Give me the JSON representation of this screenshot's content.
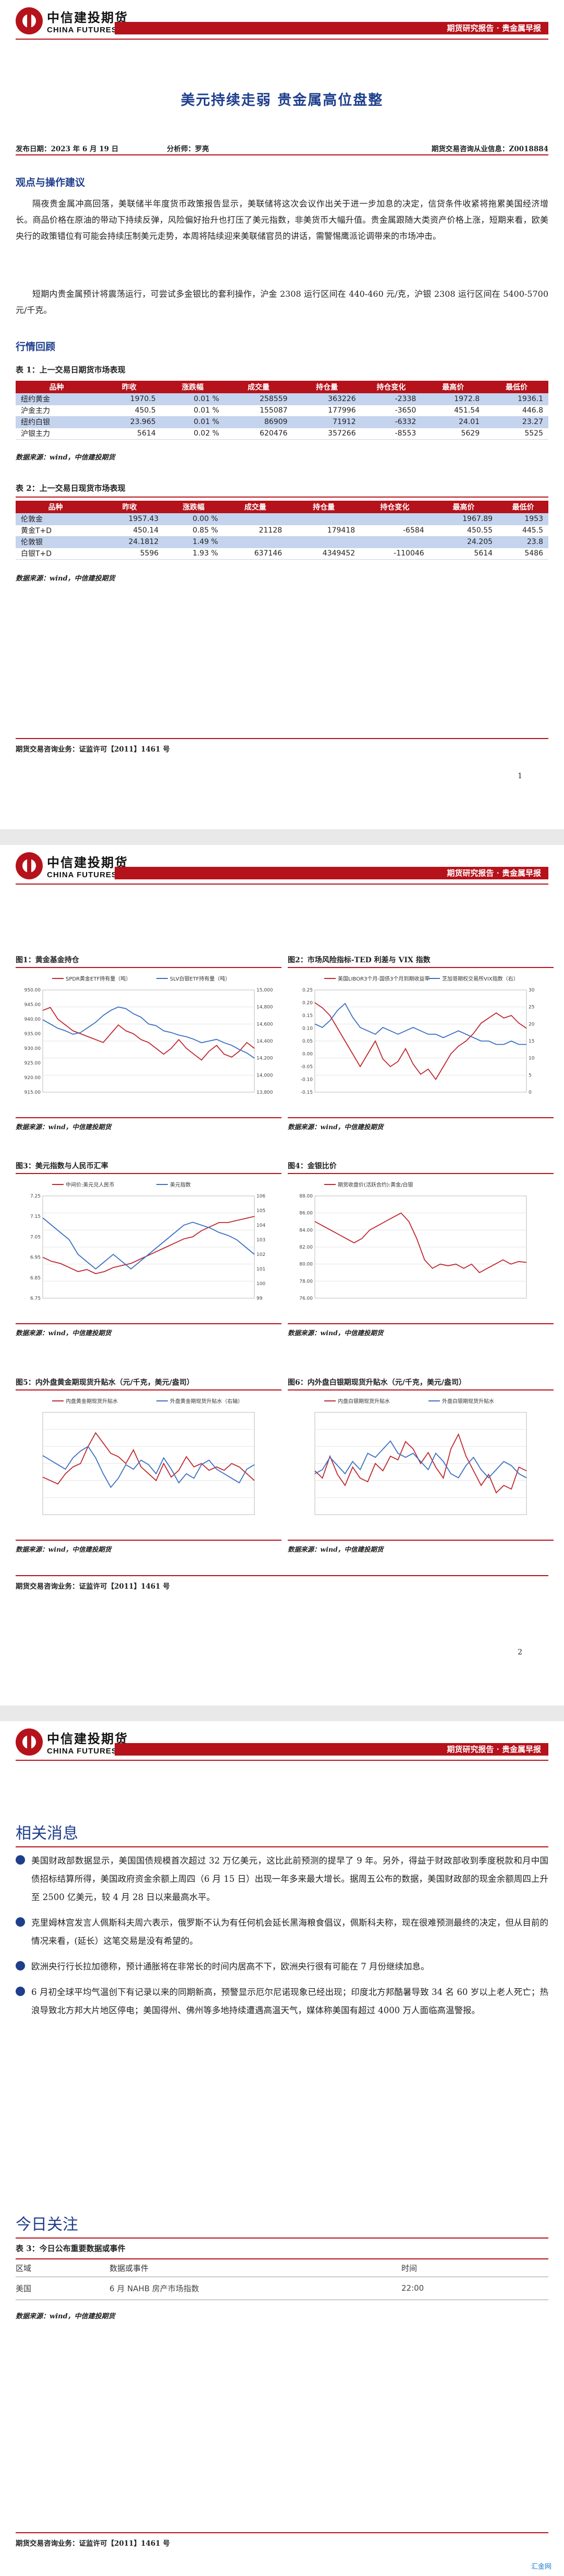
{
  "header": {
    "logo_cn": "中信建投期货",
    "logo_en": "CHINA FUTURES",
    "report_type": "期货研究报告 · 贵金属早报"
  },
  "title": "美元持续走弱  贵金属高位盘整",
  "meta": {
    "date": "发布日期：2023 年 6 月 19 日",
    "analyst": "分析师：罗亮",
    "license": "期货交易咨询从业信息：Z0018884"
  },
  "section_view": "观点与操作建议",
  "para1": "隔夜贵金属冲高回落，美联储半年度货币政策报告显示，美联储将这次会议作出关于进一步加息的决定，信贷条件收紧将拖累美国经济增长。商品价格在原油的带动下持续反弹，风险偏好抬升也打压了美元指数，非美货币大幅升值。贵金属跟随大类资产价格上涨，短期来看，欧美央行的政策错位有可能会持续压制美元走势，本周将陆续迎来美联储官员的讲话，需警惕鹰派论调带来的市场冲击。",
  "para2": "短期内贵金属预计将震荡运行，可尝试多金银比的套利操作，沪金 2308 运行区间在 440-460 元/克，沪银 2308 运行区间在 5400-5700 元/千克。",
  "section_market": "行情回顾",
  "table1": {
    "caption": "表 1：上一交易日期货市场表现",
    "headers": [
      "品种",
      "昨收",
      "涨跌幅",
      "成交量",
      "持仓量",
      "持仓变化",
      "最高价",
      "最低价"
    ],
    "rows": [
      [
        "纽约黄金",
        "1970.5",
        "0.01 %",
        "258559",
        "363226",
        "-2338",
        "1972.8",
        "1936.1"
      ],
      [
        "沪金主力",
        "450.5",
        "0.01 %",
        "155087",
        "177996",
        "-3650",
        "451.54",
        "446.8"
      ],
      [
        "纽约白银",
        "23.965",
        "0.01 %",
        "86909",
        "71912",
        "-6332",
        "24.01",
        "23.27"
      ],
      [
        "沪银主力",
        "5614",
        "0.02 %",
        "620476",
        "357266",
        "-8553",
        "5629",
        "5525"
      ]
    ],
    "source": "数据来源：wind，中信建投期货"
  },
  "table2": {
    "caption": "表 2：上一交易日现货市场表现",
    "headers": [
      "品种",
      "昨收",
      "涨跌幅",
      "成交量",
      "持仓量",
      "持仓变化",
      "最高价",
      "最低价"
    ],
    "rows": [
      [
        "伦敦金",
        "1957.43",
        "0.00 %",
        "",
        "",
        "",
        "1967.89",
        "1953"
      ],
      [
        "黄金T+D",
        "450.14",
        "0.85 %",
        "21128",
        "179418",
        "-6584",
        "450.55",
        "445.5"
      ],
      [
        "伦敦银",
        "24.1812",
        "1.49 %",
        "",
        "",
        "",
        "24.205",
        "23.8"
      ],
      [
        "白银T+D",
        "5596",
        "1.93 %",
        "637146",
        "4349452",
        "-110046",
        "5614",
        "5486"
      ]
    ],
    "source": "数据来源：wind，中信建投期货"
  },
  "footer": "期货交易咨询业务：证监许可【2011】1461 号",
  "page_numbers": [
    "1",
    "2"
  ],
  "charts": {
    "c1": {
      "title": "图1：黄金基金持仓",
      "legend": [
        "SPDR黄金ETF持有量（吨）",
        "SLV白银ETF持有量（吨）"
      ]
    },
    "c2": {
      "title": "图2：市场风险指标-TED 利差与 VIX 指数",
      "legend": [
        "美国LIBOR3个月-国债3个月到期收益率",
        "芝加哥期权交易所VIX指数（右）"
      ]
    },
    "c3": {
      "title": "图3：美元指数与人民币汇率",
      "legend": [
        "中间价:美元兑人民币",
        "美元指数"
      ]
    },
    "c4": {
      "title": "图4：金银比价",
      "legend": [
        "期货收盘价(活跃合约):黄金/白银"
      ]
    },
    "c5": {
      "title": "图5：内外盘黄金期现货升贴水（元/千克，美元/盎司）",
      "legend": [
        "内盘黄金期现货升贴水",
        "外盘黄金期现货升贴水（右轴）"
      ]
    },
    "c6": {
      "title": "图6：内外盘白银期现货升贴水（元/千克，美元/盎司）",
      "legend": [
        "内盘白银期现货升贴水",
        "外盘白银期现货升贴水"
      ]
    },
    "source": "数据来源：wind，中信建投期货"
  },
  "chart_data": [
    {
      "type": "line",
      "title": "图1：黄金基金持仓",
      "series": [
        {
          "name": "SPDR黄金ETF持有量（吨）",
          "values": [
            943,
            944,
            940,
            938,
            936,
            935,
            934,
            933,
            932,
            935,
            938,
            936,
            935,
            933,
            932,
            930,
            928,
            930,
            933,
            930,
            928,
            926,
            929,
            931,
            928,
            927,
            929,
            932,
            930
          ]
        },
        {
          "name": "SLV白银ETF持有量（吨）",
          "values": [
            14650,
            14600,
            14550,
            14520,
            14480,
            14500,
            14560,
            14620,
            14700,
            14760,
            14800,
            14780,
            14720,
            14680,
            14600,
            14580,
            14520,
            14500,
            14470,
            14450,
            14420,
            14380,
            14400,
            14420,
            14380,
            14350,
            14300,
            14260,
            14200
          ]
        }
      ],
      "ylim_left": [
        915,
        950
      ],
      "ylim_right": [
        13800,
        15000
      ],
      "yticks_left": [
        "950.00",
        "945.00",
        "940.00",
        "935.00",
        "930.00",
        "925.00",
        "920.00",
        "915.00"
      ],
      "yticks_right": [
        "15,000",
        "14,800",
        "14,600",
        "14,400",
        "14,200",
        "14,000",
        "13,800"
      ]
    },
    {
      "type": "line",
      "title": "图2：市场风险指标-TED 利差与 VIX 指数",
      "series": [
        {
          "name": "美国LIBOR3个月-国债3个月到期收益率",
          "values": [
            0.2,
            0.18,
            0.15,
            0.1,
            0.05,
            0.0,
            -0.05,
            0.0,
            0.05,
            -0.02,
            -0.05,
            -0.03,
            0.02,
            -0.04,
            -0.08,
            -0.06,
            -0.1,
            -0.05,
            0.0,
            0.03,
            0.05,
            0.08,
            0.12,
            0.14,
            0.16,
            0.14,
            0.15,
            0.12,
            0.1
          ]
        },
        {
          "name": "芝加哥期权交易所VIX指数（右）",
          "values": [
            20,
            19,
            21,
            24,
            26,
            22,
            19,
            18,
            17,
            19,
            18,
            17,
            18,
            19,
            18,
            17,
            17,
            16,
            17,
            18,
            17,
            16,
            15,
            15,
            14,
            14,
            15,
            14,
            14
          ]
        }
      ],
      "ylim_left": [
        -0.15,
        0.25
      ],
      "ylim_right": [
        0,
        30
      ],
      "yticks_left": [
        "0.25",
        "0.20",
        "0.15",
        "0.10",
        "0.05",
        "0.00",
        "-0.05",
        "-0.10",
        "-0.15"
      ],
      "yticks_right": [
        "30",
        "25",
        "20",
        "15",
        "10",
        "5",
        "0"
      ]
    },
    {
      "type": "line",
      "title": "图3：美元指数与人民币汇率",
      "series": [
        {
          "name": "中间价:美元兑人民币",
          "values": [
            6.95,
            6.93,
            6.92,
            6.9,
            6.88,
            6.89,
            6.87,
            6.88,
            6.9,
            6.91,
            6.92,
            6.94,
            6.96,
            6.98,
            7.0,
            7.02,
            7.04,
            7.05,
            7.08,
            7.1,
            7.12,
            7.12,
            7.13,
            7.14,
            7.15
          ]
        },
        {
          "name": "美元指数",
          "values": [
            104.5,
            104.0,
            103.5,
            103.0,
            102.0,
            101.5,
            101.0,
            101.5,
            102.0,
            101.5,
            101.0,
            101.5,
            102.0,
            102.5,
            103.0,
            103.5,
            104.0,
            104.2,
            104.0,
            103.8,
            103.5,
            103.3,
            103.0,
            102.5,
            102.0
          ]
        }
      ],
      "ylim_left": [
        6.75,
        7.25
      ],
      "ylim_right": [
        99,
        106
      ],
      "yticks_left": [
        "7.25",
        "7.15",
        "7.05",
        "6.95",
        "6.85",
        "6.75"
      ],
      "yticks_right": [
        "106",
        "105",
        "104",
        "103",
        "102",
        "101",
        "100",
        "99"
      ]
    },
    {
      "type": "line",
      "title": "图4：金银比价",
      "series": [
        {
          "name": "期货收盘价(活跃合约):黄金/白银",
          "values": [
            85.0,
            84.5,
            84.0,
            83.5,
            83.0,
            82.5,
            83.0,
            84.0,
            84.5,
            85.0,
            85.5,
            86.0,
            85.0,
            83.0,
            80.5,
            79.5,
            80.0,
            79.8,
            80.0,
            79.5,
            80.0,
            79.0,
            79.5,
            80.0,
            80.5,
            80.0,
            80.3,
            80.2
          ]
        }
      ],
      "ylim": [
        76,
        88
      ],
      "yticks": [
        "88.00",
        "86.00",
        "84.00",
        "82.00",
        "80.00",
        "78.00",
        "76.00"
      ]
    },
    {
      "type": "line",
      "title": "图5：内外盘黄金期现货升贴水（元/千克，美元/盎司）",
      "series": [
        {
          "name": "内盘黄金期现货升贴水",
          "values": [
            0.6,
            0.5,
            0.4,
            0.7,
            0.9,
            1.0,
            1.5,
            1.9,
            1.6,
            1.3,
            1.2,
            1.0,
            1.4,
            0.9,
            0.7,
            0.5,
            1.0,
            0.6,
            0.8,
            1.2,
            0.9,
            1.0,
            0.8,
            0.9,
            0.8,
            1.0,
            0.9,
            0.7,
            0.5
          ]
        },
        {
          "name": "外盘黄金期现货升贴水（右轴）",
          "values": [
            26,
            24,
            22,
            20,
            25,
            28,
            30,
            25,
            18,
            12,
            16,
            22,
            20,
            24,
            22,
            18,
            25,
            20,
            14,
            18,
            16,
            22,
            24,
            20,
            18,
            16,
            14,
            20,
            22
          ]
        }
      ],
      "ylim_left": [
        -0.5,
        2.5
      ],
      "ylim_right": [
        0,
        45
      ]
    },
    {
      "type": "line",
      "title": "图6：内外盘白银期现货升贴水（元/千克，美元/盎司）",
      "series": [
        {
          "name": "内盘白银期现货升贴水",
          "values": [
            40,
            30,
            60,
            35,
            20,
            45,
            30,
            25,
            50,
            40,
            60,
            55,
            80,
            70,
            50,
            65,
            45,
            30,
            70,
            90,
            60,
            40,
            20,
            35,
            10,
            20,
            15,
            45,
            40
          ]
        },
        {
          "name": "外盘白银期现货升贴水",
          "values": [
            0.2,
            0.22,
            0.28,
            0.24,
            0.2,
            0.26,
            0.22,
            0.3,
            0.28,
            0.32,
            0.36,
            0.3,
            0.28,
            0.3,
            0.26,
            0.22,
            0.3,
            0.26,
            0.2,
            0.18,
            0.24,
            0.28,
            0.22,
            0.18,
            0.22,
            0.26,
            0.24,
            0.2,
            0.18
          ]
        }
      ],
      "ylim_left": [
        -20,
        120
      ],
      "ylim_right": [
        0.0,
        0.5
      ]
    }
  ],
  "section_news": "相关消息",
  "news": [
    "美国财政部数据显示，美国国债规模首次超过 32 万亿美元，这比此前预测的提早了 9 年。另外，得益于财政部收到季度税款和月中国债招标结算所得，美国政府资金余额上周四（6 月 15 日）出现一年多来最大增长。据周五公布的数据，美国财政部的现金余额周四上升至 2500 亿美元，较 4 月 28 日以来最高水平。",
    "克里姆林宫发言人佩斯科夫周六表示，俄罗斯不认为有任何机会延长黑海粮食倡议，佩斯科夫称，现在很难预测最终的决定，但从目前的情况来看，(延长）这笔交易是没有希望的。",
    "欧洲央行行长拉加德称，预计通胀将在非常长的时间内居高不下，欧洲央行很有可能在 7 月份继续加息。",
    "6 月初全球平均气温创下有记录以来的同期新高，预警显示厄尔尼诺现象已经出现；印度北方邦酷暑导致 34 名 60 岁以上老人死亡；热浪导致北方邦大片地区停电；美国得州、佛州等多地持续遭遇高温天气，媒体称美国有超过 4000 万人面临高温警报。"
  ],
  "section_today": "今日关注",
  "table3": {
    "caption": "表 3：今日公布重要数据或事件",
    "headers": [
      "区域",
      "数据或事件",
      "时间"
    ],
    "rows": [
      [
        "美国",
        "6 月 NAHB 房产市场指数",
        "22:00"
      ]
    ],
    "source": "数据来源：wind，中信建投期货"
  },
  "watermark": "汇金网"
}
